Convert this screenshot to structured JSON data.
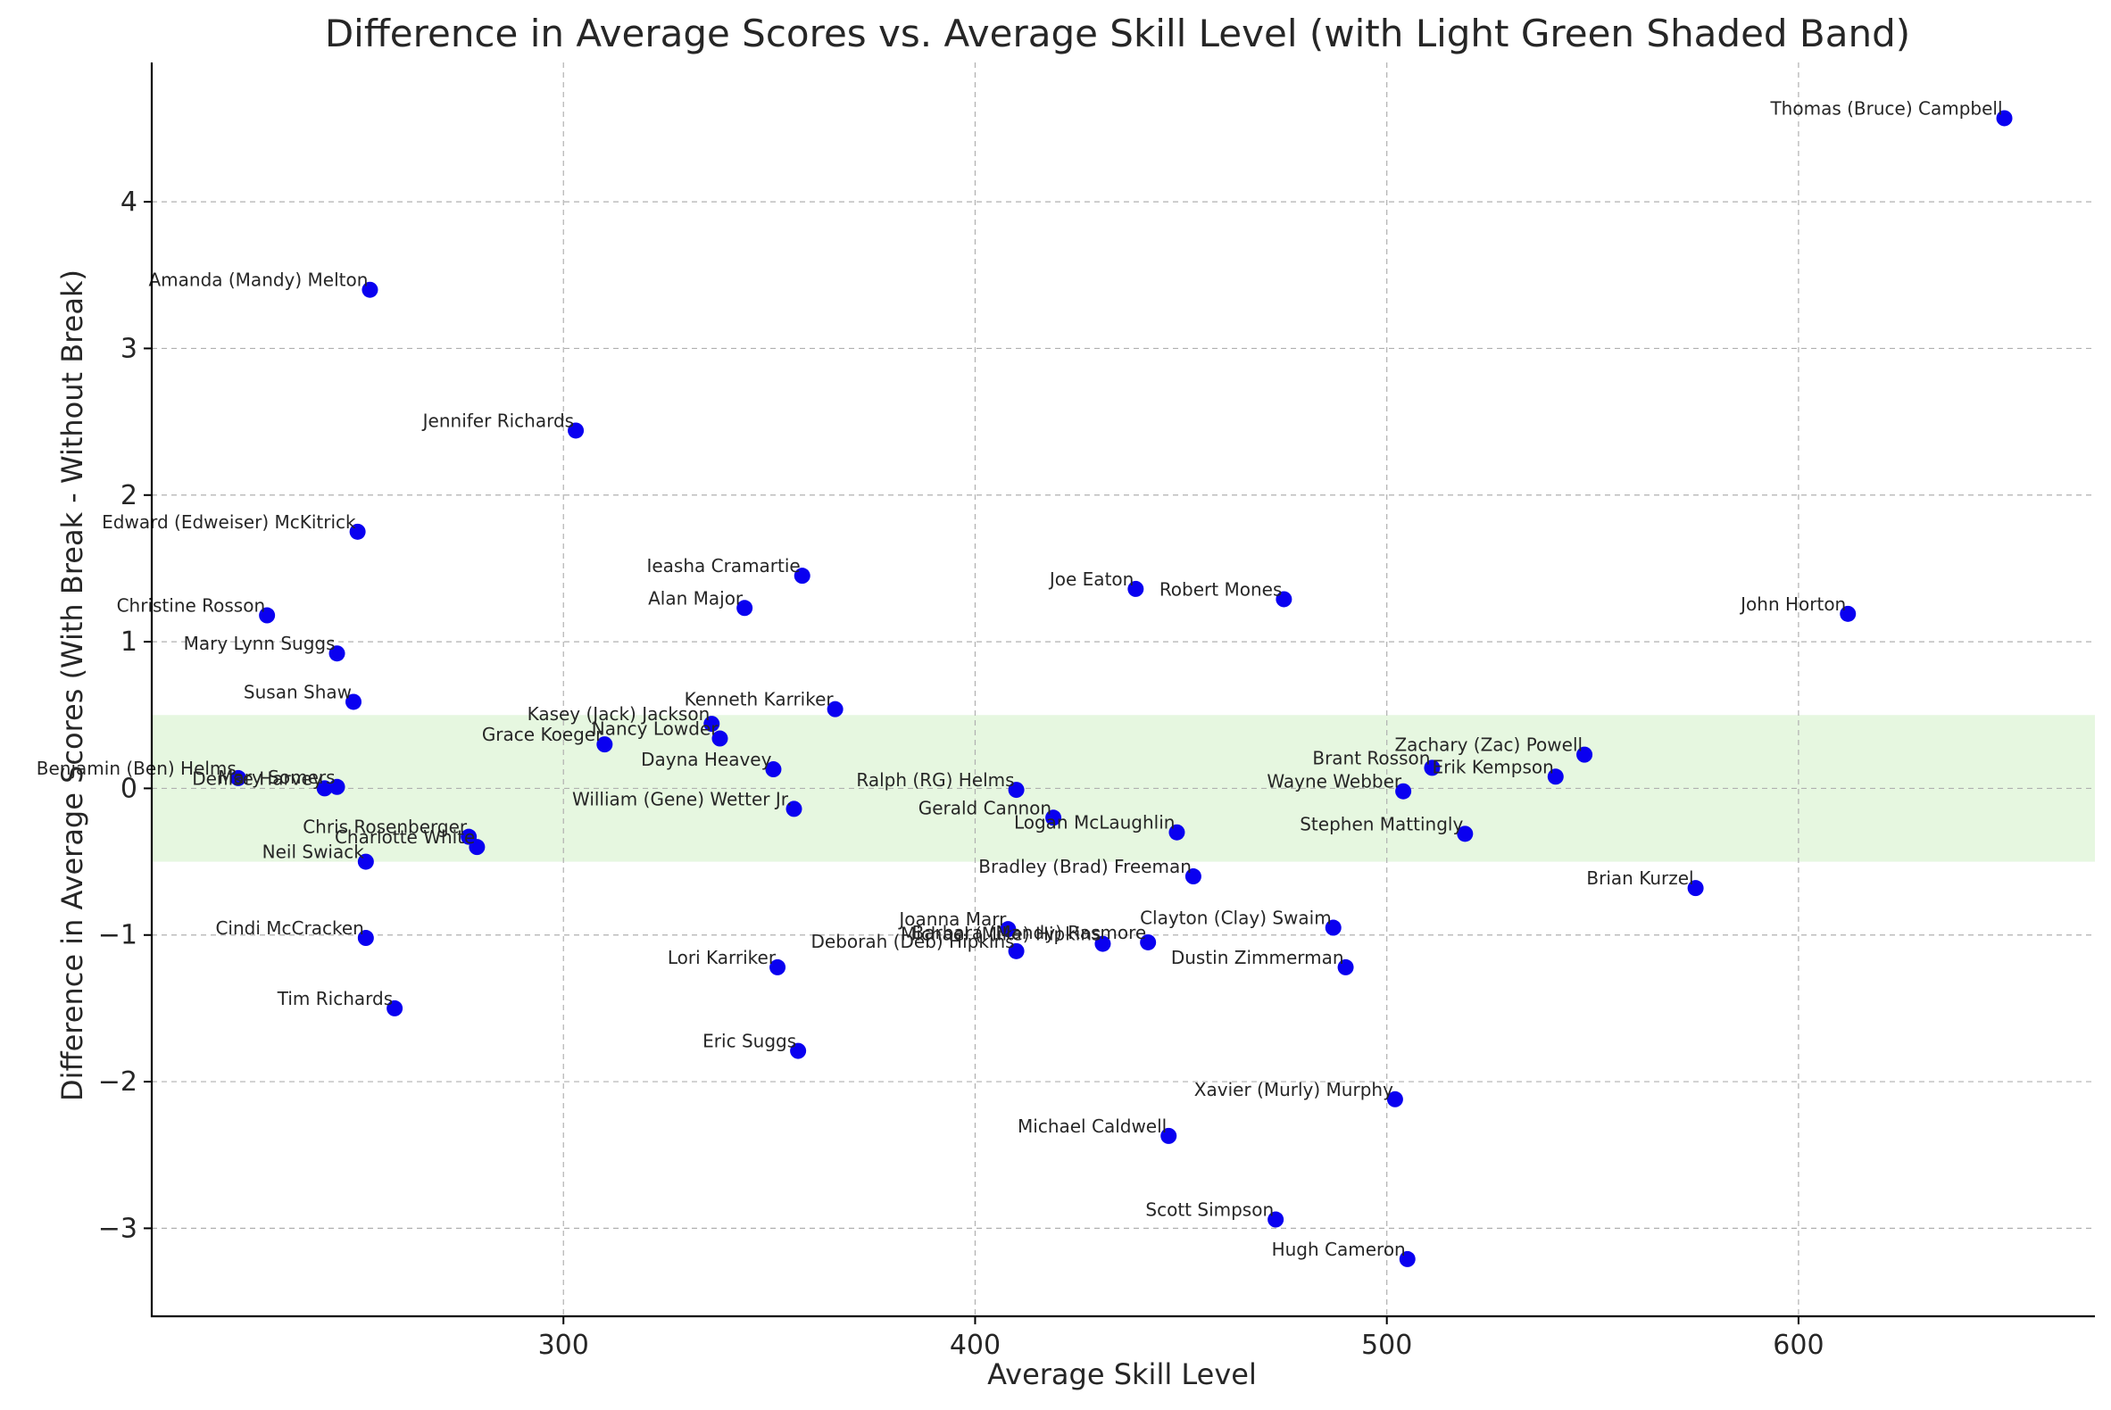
{
  "chart_data": {
    "type": "scatter",
    "title": "Difference in Average Scores vs. Average Skill Level (with Light Green Shaded Band)",
    "xlabel": "Average Skill Level",
    "ylabel": "Difference in Average Scores (With Break - Without Break)",
    "xlim": [
      200,
      672
    ],
    "ylim": [
      -3.6,
      4.95
    ],
    "xticks": [
      300,
      400,
      500,
      600
    ],
    "yticks": [
      -3,
      -2,
      -1,
      0,
      1,
      2,
      3,
      4
    ],
    "xtick_labels": [
      "300",
      "400",
      "500",
      "600"
    ],
    "ytick_labels": [
      "−3",
      "−2",
      "−1",
      "0",
      "1",
      "2",
      "3",
      "4"
    ],
    "band": {
      "from": -0.5,
      "to": 0.5,
      "color": "#e6f7e0"
    },
    "grid": true,
    "marker_color": "#0a00f0",
    "points": [
      {
        "name": "Thomas (Bruce) Campbell",
        "x": 650,
        "y": 4.57
      },
      {
        "name": "Amanda (Mandy) Melton",
        "x": 253,
        "y": 3.4
      },
      {
        "name": "Jennifer Richards",
        "x": 303,
        "y": 2.44
      },
      {
        "name": "Edward (Edweiser) McKitrick",
        "x": 250,
        "y": 1.75
      },
      {
        "name": "Ieasha Cramartie",
        "x": 358,
        "y": 1.45
      },
      {
        "name": "Joe Eaton",
        "x": 439,
        "y": 1.36
      },
      {
        "name": "Robert Mones",
        "x": 475,
        "y": 1.29
      },
      {
        "name": "Alan Major",
        "x": 344,
        "y": 1.23
      },
      {
        "name": "Christine Rosson",
        "x": 228,
        "y": 1.18
      },
      {
        "name": "John Horton",
        "x": 612,
        "y": 1.19
      },
      {
        "name": "Mary Lynn Suggs",
        "x": 245,
        "y": 0.92
      },
      {
        "name": "Susan Shaw",
        "x": 249,
        "y": 0.59
      },
      {
        "name": "Kenneth Karriker",
        "x": 366,
        "y": 0.54
      },
      {
        "name": "Kasey (Jack) Jackson",
        "x": 336,
        "y": 0.44
      },
      {
        "name": "Nancy Lowder",
        "x": 338,
        "y": 0.34
      },
      {
        "name": "Grace  Koeger",
        "x": 310,
        "y": 0.3
      },
      {
        "name": "Zachary (Zac) Powell",
        "x": 548,
        "y": 0.23
      },
      {
        "name": "Brant Rosson",
        "x": 511,
        "y": 0.14
      },
      {
        "name": "Dayna Heavey",
        "x": 351,
        "y": 0.13
      },
      {
        "name": "Erik Kempson",
        "x": 541,
        "y": 0.08
      },
      {
        "name": "Benjamin (Ben) Helms",
        "x": 221,
        "y": 0.07
      },
      {
        "name": "Mary Somers",
        "x": 245,
        "y": 0.01
      },
      {
        "name": "Denise Harvey",
        "x": 242,
        "y": 0.0
      },
      {
        "name": "Ralph (RG) Helms",
        "x": 410,
        "y": -0.01
      },
      {
        "name": "Wayne Webber",
        "x": 504,
        "y": -0.02
      },
      {
        "name": "William (Gene) Wetter Jr.",
        "x": 356,
        "y": -0.14
      },
      {
        "name": "Gerald Cannon",
        "x": 419,
        "y": -0.2
      },
      {
        "name": "Logan McLaughlin",
        "x": 449,
        "y": -0.3
      },
      {
        "name": "Stephen Mattingly",
        "x": 519,
        "y": -0.31
      },
      {
        "name": "Chris Rosenberger",
        "x": 277,
        "y": -0.33
      },
      {
        "name": "Charlotte White",
        "x": 279,
        "y": -0.4
      },
      {
        "name": "Neil Swiack",
        "x": 252,
        "y": -0.5
      },
      {
        "name": "Bradley (Brad) Freeman",
        "x": 453,
        "y": -0.6
      },
      {
        "name": "Brian Kurzel",
        "x": 575,
        "y": -0.68
      },
      {
        "name": "Clayton (Clay) Swaim",
        "x": 487,
        "y": -0.95
      },
      {
        "name": "Joanna Marr",
        "x": 408,
        "y": -0.96
      },
      {
        "name": "Cindi McCracken",
        "x": 252,
        "y": -1.02
      },
      {
        "name": "Barbara (Mandy) Rasmore",
        "x": 442,
        "y": -1.05
      },
      {
        "name": "Michael (Mike) Hipkins",
        "x": 431,
        "y": -1.06
      },
      {
        "name": "Deborah (Deb) Hipkins",
        "x": 410,
        "y": -1.11
      },
      {
        "name": "Lori Karriker",
        "x": 352,
        "y": -1.22
      },
      {
        "name": "Dustin Zimmerman",
        "x": 490,
        "y": -1.22
      },
      {
        "name": "Tim Richards",
        "x": 259,
        "y": -1.5
      },
      {
        "name": "Eric Suggs",
        "x": 357,
        "y": -1.79
      },
      {
        "name": "Xavier (Murly) Murphy",
        "x": 502,
        "y": -2.12
      },
      {
        "name": "Michael Caldwell",
        "x": 447,
        "y": -2.37
      },
      {
        "name": "Scott Simpson",
        "x": 473,
        "y": -2.94
      },
      {
        "name": "Hugh Cameron",
        "x": 505,
        "y": -3.21
      }
    ]
  }
}
